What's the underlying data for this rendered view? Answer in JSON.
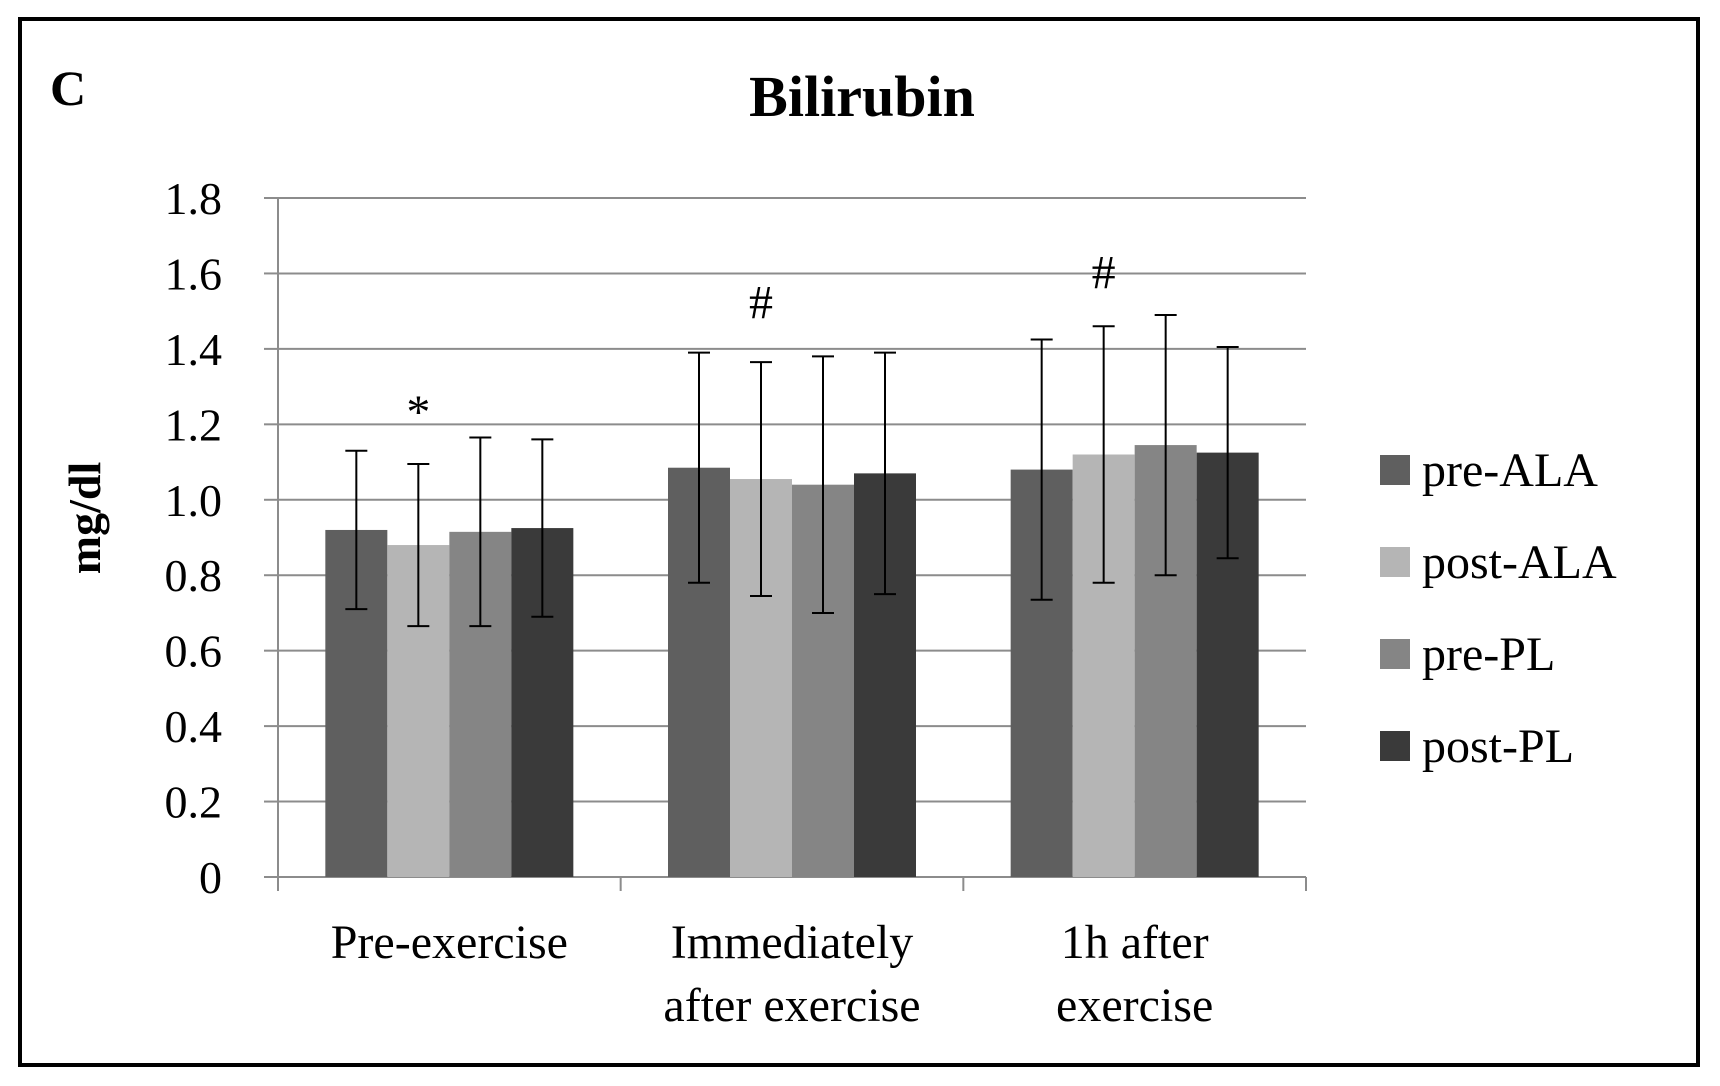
{
  "panel_label": "C",
  "chart_data": {
    "type": "bar",
    "title": "Bilirubin",
    "xlabel": "",
    "ylabel": "mg/dl",
    "ylim": [
      0,
      1.8
    ],
    "yticks": [
      "0",
      "0.2",
      "0.4",
      "0.6",
      "0.8",
      "1.0",
      "1.2",
      "1.4",
      "1.6",
      "1.8"
    ],
    "ytick_values": [
      0,
      0.2,
      0.4,
      0.6,
      0.8,
      1.0,
      1.2,
      1.4,
      1.6,
      1.8
    ],
    "grid": true,
    "legend_position": "right",
    "categories": [
      [
        "Pre-exercise"
      ],
      [
        "Immediately",
        "after exercise"
      ],
      [
        "1h after",
        "exercise"
      ]
    ],
    "series": [
      {
        "name": "pre-ALA",
        "color": "#5f5f5f",
        "values": [
          0.92,
          1.085,
          1.08
        ],
        "errors": [
          0.21,
          0.305,
          0.345
        ]
      },
      {
        "name": "post-ALA",
        "color": "#b5b5b5",
        "values": [
          0.88,
          1.055,
          1.12
        ],
        "errors": [
          0.215,
          0.31,
          0.34
        ]
      },
      {
        "name": "pre-PL",
        "color": "#858585",
        "values": [
          0.915,
          1.04,
          1.145
        ],
        "errors": [
          0.25,
          0.34,
          0.345
        ]
      },
      {
        "name": "post-PL",
        "color": "#3a3a3a",
        "values": [
          0.925,
          1.07,
          1.125
        ],
        "errors": [
          0.235,
          0.32,
          0.28
        ]
      }
    ],
    "annotations": [
      {
        "text": "*",
        "category": 0,
        "series": 1,
        "y": 1.19
      },
      {
        "text": "#",
        "category": 1,
        "series": 1,
        "y": 1.48
      },
      {
        "text": "#",
        "category": 2,
        "series": 1,
        "y": 1.56
      }
    ]
  }
}
